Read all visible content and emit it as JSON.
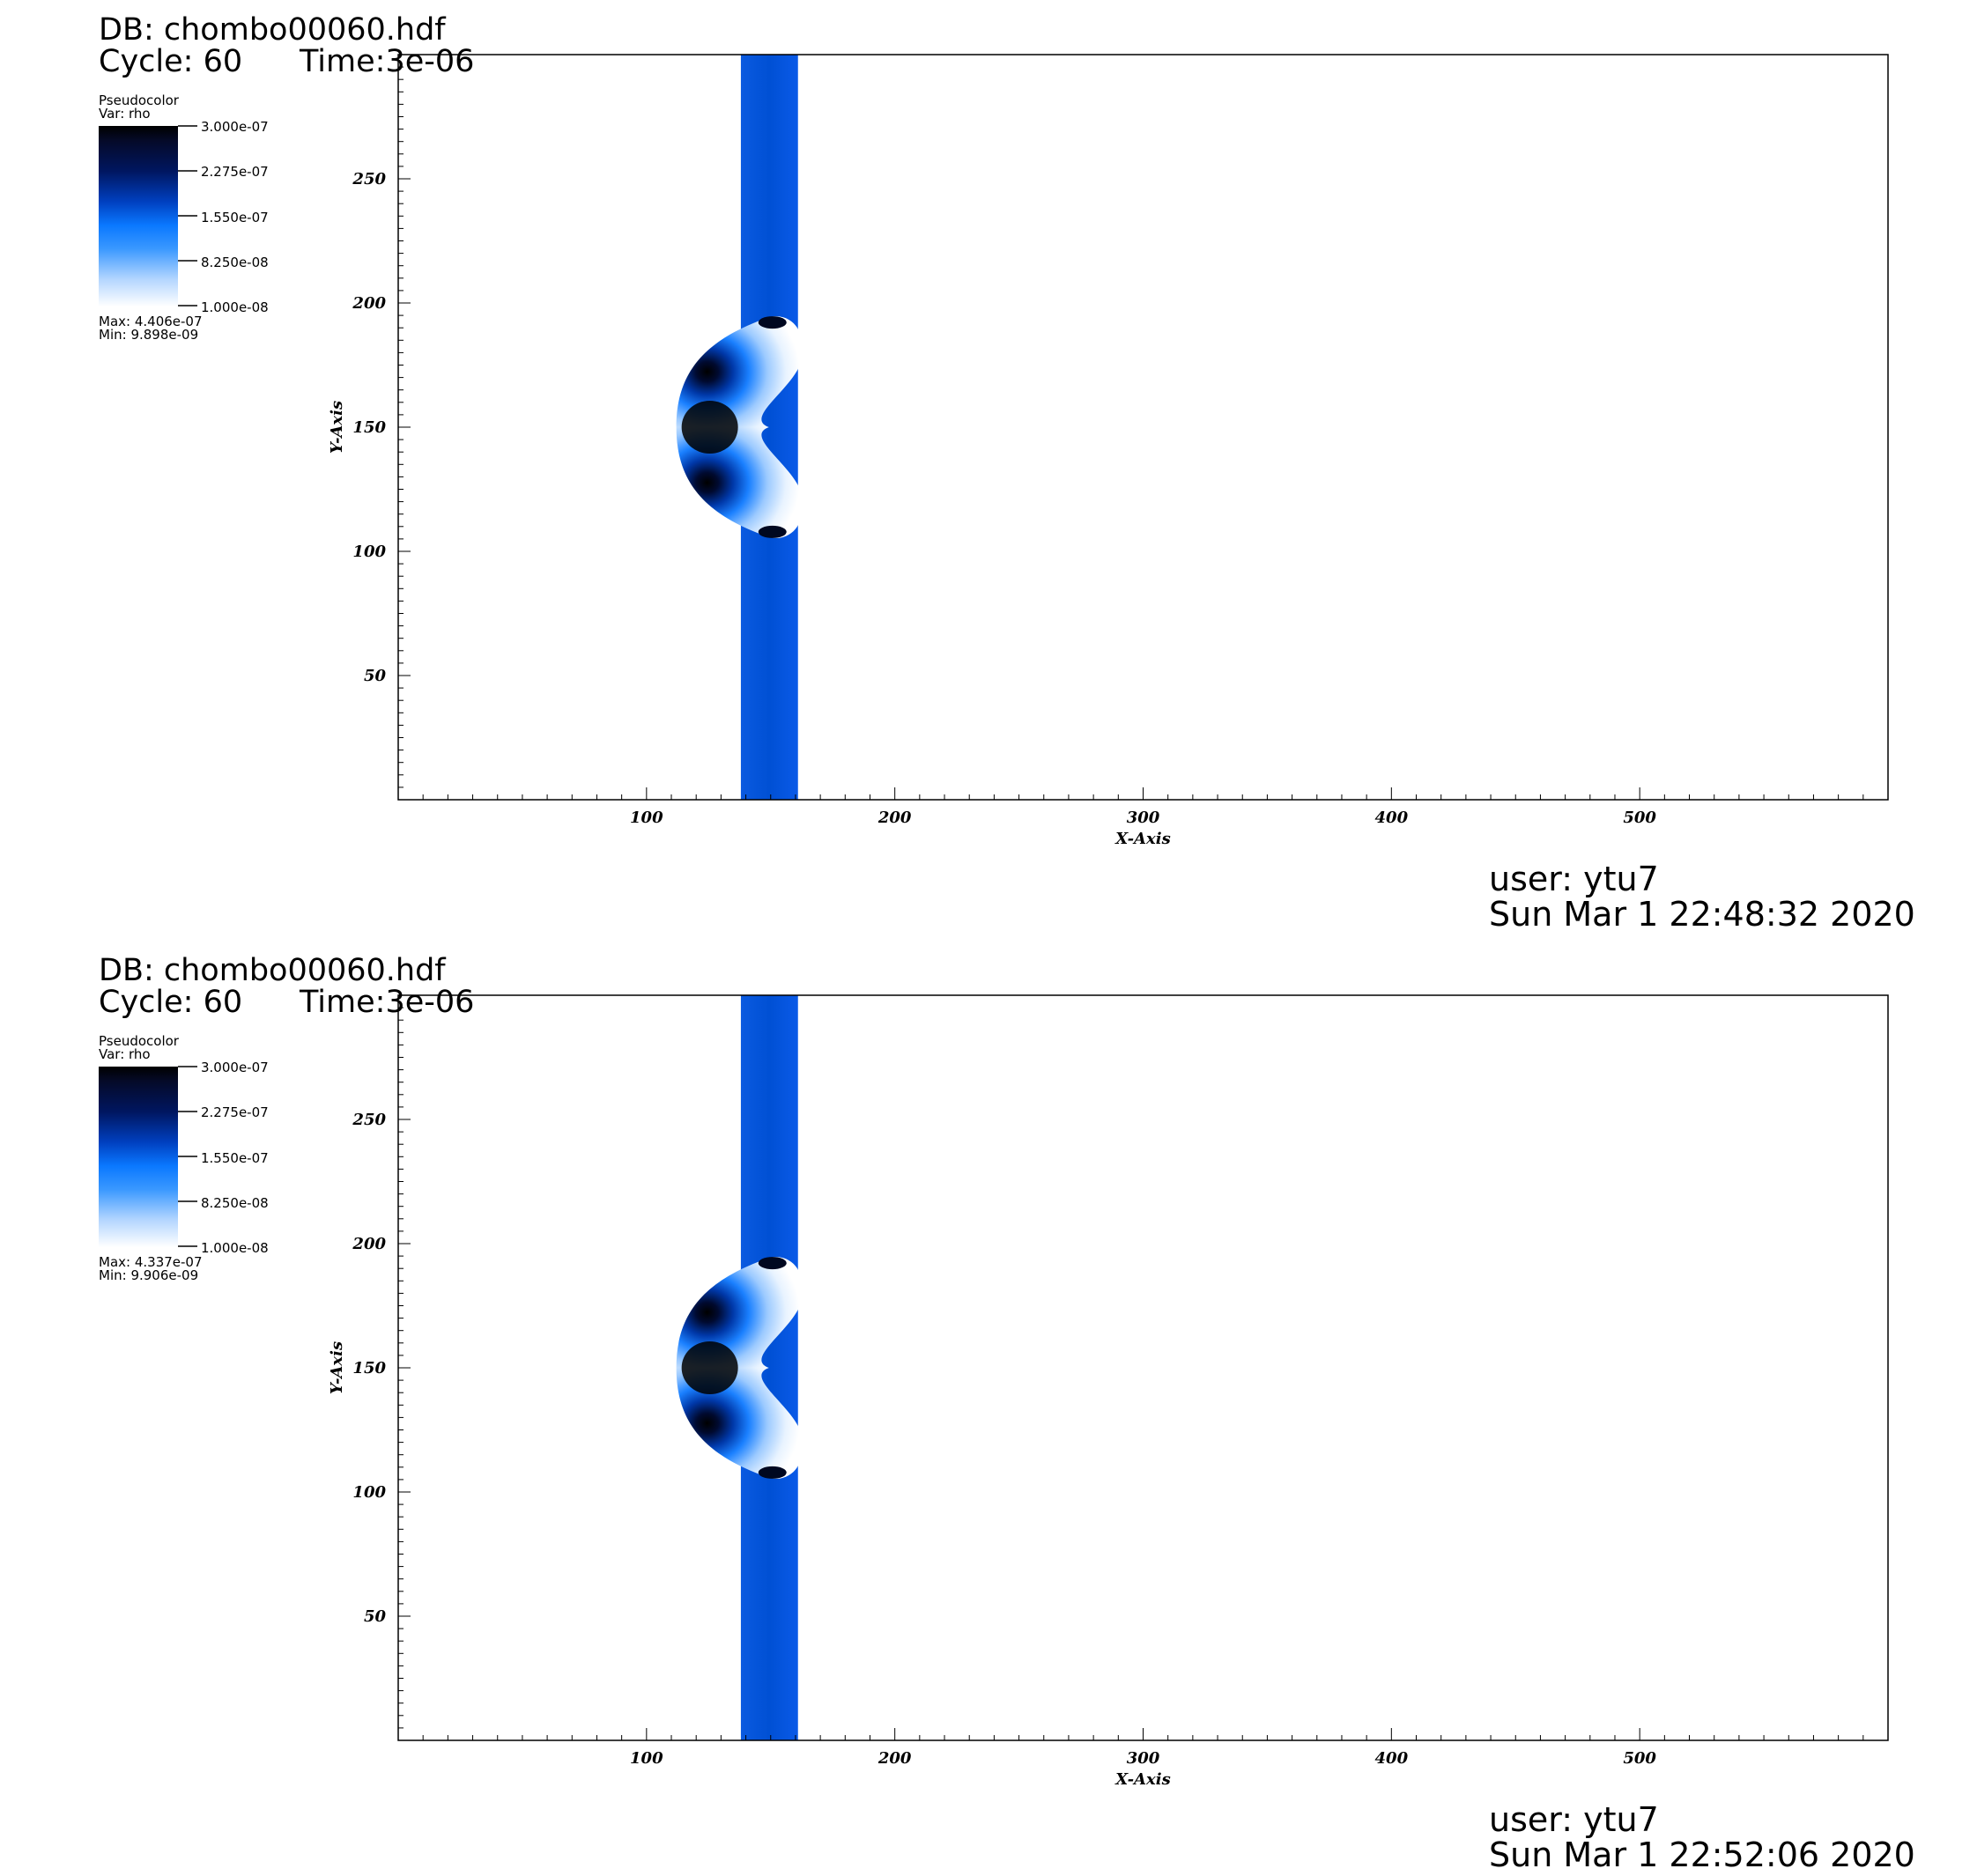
{
  "panels": [
    {
      "db": "DB: chombo00060.hdf",
      "cycle": "Cycle: 60",
      "time": "Time:3e-06",
      "legend": {
        "plot_type": "Pseudocolor",
        "var": "Var: rho",
        "ticks": [
          "3.000e-07",
          "2.275e-07",
          "1.550e-07",
          "8.250e-08",
          "1.000e-08"
        ],
        "max": "Max:  4.406e-07",
        "min": "Min:  9.898e-09"
      },
      "user": "user: ytu7",
      "timestamp": "Sun Mar  1 22:48:32 2020"
    },
    {
      "db": "DB: chombo00060.hdf",
      "cycle": "Cycle: 60",
      "time": "Time:3e-06",
      "legend": {
        "plot_type": "Pseudocolor",
        "var": "Var: rho",
        "ticks": [
          "3.000e-07",
          "2.275e-07",
          "1.550e-07",
          "8.250e-08",
          "1.000e-08"
        ],
        "max": "Max:  4.337e-07",
        "min": "Min:  9.906e-09"
      },
      "user": "user: ytu7",
      "timestamp": "Sun Mar  1 22:52:06 2020"
    }
  ],
  "chart_data": [
    {
      "type": "heatmap",
      "variable": "rho",
      "xlabel": "X-Axis",
      "ylabel": "Y-Axis",
      "xlim": [
        0,
        600
      ],
      "ylim": [
        0,
        300
      ],
      "x_ticks": [
        100,
        200,
        300,
        400,
        500
      ],
      "y_ticks": [
        50,
        100,
        150,
        200,
        250
      ],
      "colorbar_range": [
        1e-08,
        3e-07
      ],
      "max": 4.406e-07,
      "min": 9.898e-09,
      "features": {
        "band_x": [
          138,
          161
        ],
        "band_value": 1.7e-07,
        "bubble_center": [
          150,
          150
        ],
        "bubble_y_range": [
          105,
          195
        ],
        "bubble_left_x": 112,
        "core_value": 4.4e-07
      }
    },
    {
      "type": "heatmap",
      "variable": "rho",
      "xlabel": "X-Axis",
      "ylabel": "Y-Axis",
      "xlim": [
        0,
        600
      ],
      "ylim": [
        0,
        300
      ],
      "x_ticks": [
        100,
        200,
        300,
        400,
        500
      ],
      "y_ticks": [
        50,
        100,
        150,
        200,
        250
      ],
      "colorbar_range": [
        1e-08,
        3e-07
      ],
      "max": 4.337e-07,
      "min": 9.906e-09,
      "features": {
        "band_x": [
          138,
          161
        ],
        "band_value": 1.7e-07,
        "bubble_center": [
          150,
          150
        ],
        "bubble_y_range": [
          105,
          195
        ],
        "bubble_left_x": 112,
        "core_value": 4.3e-07
      }
    }
  ]
}
